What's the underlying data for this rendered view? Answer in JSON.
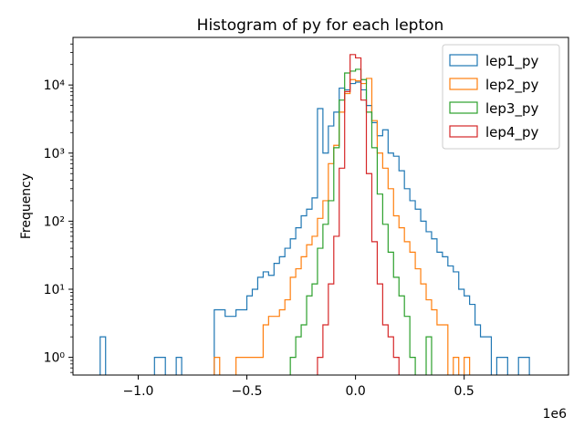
{
  "chart_data": {
    "type": "histogram",
    "title": "Histogram of py for each lepton",
    "xlabel": "",
    "ylabel": "Frequency",
    "x_offset_label": "1e6",
    "x_scale_factor": 1000000,
    "yscale": "log",
    "xlim": [
      -1.3,
      0.98
    ],
    "ylim": [
      0.55,
      50000
    ],
    "xticks": [
      -1.0,
      -0.5,
      0.0,
      0.5
    ],
    "xtick_labels": [
      "−1.0",
      "−0.5",
      "0.0",
      "0.5"
    ],
    "yticks": [
      1,
      10,
      100,
      1000,
      10000
    ],
    "ytick_labels": [
      "10⁰",
      "10¹",
      "10²",
      "10³",
      "10⁴"
    ],
    "legend_position": "top-right",
    "grid": false,
    "series": [
      {
        "name": "lep1_py",
        "color": "#1f77b4",
        "bins": [
          [
            -1.175,
            -1.15,
            2
          ],
          [
            -0.925,
            -0.875,
            1
          ],
          [
            -0.825,
            -0.8,
            1
          ],
          [
            -0.65,
            -0.6,
            5
          ],
          [
            -0.6,
            -0.55,
            4
          ],
          [
            -0.55,
            -0.5,
            5
          ],
          [
            -0.5,
            -0.475,
            8
          ],
          [
            -0.475,
            -0.45,
            10
          ],
          [
            -0.45,
            -0.425,
            15
          ],
          [
            -0.425,
            -0.4,
            18
          ],
          [
            -0.4,
            -0.375,
            16
          ],
          [
            -0.375,
            -0.35,
            24
          ],
          [
            -0.35,
            -0.325,
            30
          ],
          [
            -0.325,
            -0.3,
            40
          ],
          [
            -0.3,
            -0.275,
            55
          ],
          [
            -0.275,
            -0.25,
            80
          ],
          [
            -0.25,
            -0.225,
            120
          ],
          [
            -0.225,
            -0.2,
            150
          ],
          [
            -0.2,
            -0.175,
            220
          ],
          [
            -0.175,
            -0.15,
            4500
          ],
          [
            -0.15,
            -0.125,
            1000
          ],
          [
            -0.125,
            -0.1,
            2500
          ],
          [
            -0.1,
            -0.075,
            4000
          ],
          [
            -0.075,
            -0.05,
            9000
          ],
          [
            -0.05,
            -0.025,
            8500
          ],
          [
            -0.025,
            0.0,
            10500
          ],
          [
            0.0,
            0.025,
            11000
          ],
          [
            0.025,
            0.05,
            8500
          ],
          [
            0.05,
            0.075,
            5000
          ],
          [
            0.075,
            0.1,
            2800
          ],
          [
            0.1,
            0.125,
            1800
          ],
          [
            0.125,
            0.15,
            2200
          ],
          [
            0.15,
            0.175,
            1000
          ],
          [
            0.175,
            0.2,
            900
          ],
          [
            0.2,
            0.225,
            550
          ],
          [
            0.225,
            0.25,
            300
          ],
          [
            0.25,
            0.275,
            200
          ],
          [
            0.275,
            0.3,
            150
          ],
          [
            0.3,
            0.325,
            100
          ],
          [
            0.325,
            0.35,
            70
          ],
          [
            0.35,
            0.375,
            55
          ],
          [
            0.375,
            0.4,
            35
          ],
          [
            0.4,
            0.425,
            30
          ],
          [
            0.425,
            0.45,
            22
          ],
          [
            0.45,
            0.475,
            18
          ],
          [
            0.475,
            0.5,
            10
          ],
          [
            0.5,
            0.525,
            8
          ],
          [
            0.525,
            0.55,
            6
          ],
          [
            0.55,
            0.575,
            3
          ],
          [
            0.575,
            0.6,
            2
          ],
          [
            0.6,
            0.625,
            2
          ],
          [
            0.65,
            0.7,
            1
          ],
          [
            0.75,
            0.8,
            1
          ]
        ]
      },
      {
        "name": "lep2_py",
        "color": "#ff7f0e",
        "bins": [
          [
            -0.65,
            -0.625,
            1
          ],
          [
            -0.55,
            -0.425,
            1
          ],
          [
            -0.425,
            -0.4,
            3
          ],
          [
            -0.4,
            -0.35,
            4
          ],
          [
            -0.35,
            -0.325,
            5
          ],
          [
            -0.325,
            -0.3,
            7
          ],
          [
            -0.3,
            -0.275,
            15
          ],
          [
            -0.275,
            -0.25,
            20
          ],
          [
            -0.25,
            -0.225,
            30
          ],
          [
            -0.225,
            -0.2,
            45
          ],
          [
            -0.2,
            -0.175,
            60
          ],
          [
            -0.175,
            -0.15,
            110
          ],
          [
            -0.15,
            -0.125,
            200
          ],
          [
            -0.125,
            -0.1,
            700
          ],
          [
            -0.1,
            -0.075,
            1300
          ],
          [
            -0.075,
            -0.05,
            4000
          ],
          [
            -0.05,
            -0.025,
            7500
          ],
          [
            -0.025,
            0.0,
            12000
          ],
          [
            0.0,
            0.025,
            11500
          ],
          [
            0.025,
            0.05,
            10500
          ],
          [
            0.05,
            0.075,
            12500
          ],
          [
            0.075,
            0.1,
            3000
          ],
          [
            0.1,
            0.125,
            1000
          ],
          [
            0.125,
            0.15,
            600
          ],
          [
            0.15,
            0.175,
            300
          ],
          [
            0.175,
            0.2,
            120
          ],
          [
            0.2,
            0.225,
            80
          ],
          [
            0.225,
            0.25,
            50
          ],
          [
            0.25,
            0.275,
            35
          ],
          [
            0.275,
            0.3,
            20
          ],
          [
            0.3,
            0.325,
            12
          ],
          [
            0.325,
            0.35,
            7
          ],
          [
            0.35,
            0.375,
            5
          ],
          [
            0.375,
            0.4,
            3
          ],
          [
            0.4,
            0.425,
            3
          ],
          [
            0.45,
            0.475,
            1
          ],
          [
            0.5,
            0.525,
            1
          ]
        ]
      },
      {
        "name": "lep3_py",
        "color": "#2ca02c",
        "bins": [
          [
            -0.3,
            -0.275,
            1
          ],
          [
            -0.275,
            -0.25,
            2
          ],
          [
            -0.25,
            -0.225,
            3
          ],
          [
            -0.225,
            -0.2,
            8
          ],
          [
            -0.2,
            -0.175,
            12
          ],
          [
            -0.175,
            -0.15,
            40
          ],
          [
            -0.15,
            -0.125,
            90
          ],
          [
            -0.125,
            -0.1,
            200
          ],
          [
            -0.1,
            -0.075,
            1200
          ],
          [
            -0.075,
            -0.05,
            6000
          ],
          [
            -0.05,
            -0.025,
            15000
          ],
          [
            -0.025,
            0.0,
            16000
          ],
          [
            0.0,
            0.025,
            17000
          ],
          [
            0.025,
            0.05,
            12000
          ],
          [
            0.05,
            0.075,
            4000
          ],
          [
            0.075,
            0.1,
            1200
          ],
          [
            0.1,
            0.125,
            250
          ],
          [
            0.125,
            0.15,
            90
          ],
          [
            0.15,
            0.175,
            35
          ],
          [
            0.175,
            0.2,
            15
          ],
          [
            0.2,
            0.225,
            8
          ],
          [
            0.225,
            0.25,
            4
          ],
          [
            0.25,
            0.275,
            1
          ],
          [
            0.325,
            0.35,
            2
          ]
        ]
      },
      {
        "name": "lep4_py",
        "color": "#d62728",
        "bins": [
          [
            -0.175,
            -0.15,
            1
          ],
          [
            -0.15,
            -0.125,
            3
          ],
          [
            -0.125,
            -0.1,
            12
          ],
          [
            -0.1,
            -0.075,
            60
          ],
          [
            -0.075,
            -0.05,
            600
          ],
          [
            -0.05,
            -0.025,
            8000
          ],
          [
            -0.025,
            0.0,
            28000
          ],
          [
            0.0,
            0.025,
            25000
          ],
          [
            0.025,
            0.05,
            6000
          ],
          [
            0.05,
            0.075,
            500
          ],
          [
            0.075,
            0.1,
            50
          ],
          [
            0.1,
            0.125,
            12
          ],
          [
            0.125,
            0.15,
            3
          ],
          [
            0.15,
            0.175,
            2
          ],
          [
            0.175,
            0.2,
            1
          ]
        ]
      }
    ]
  }
}
